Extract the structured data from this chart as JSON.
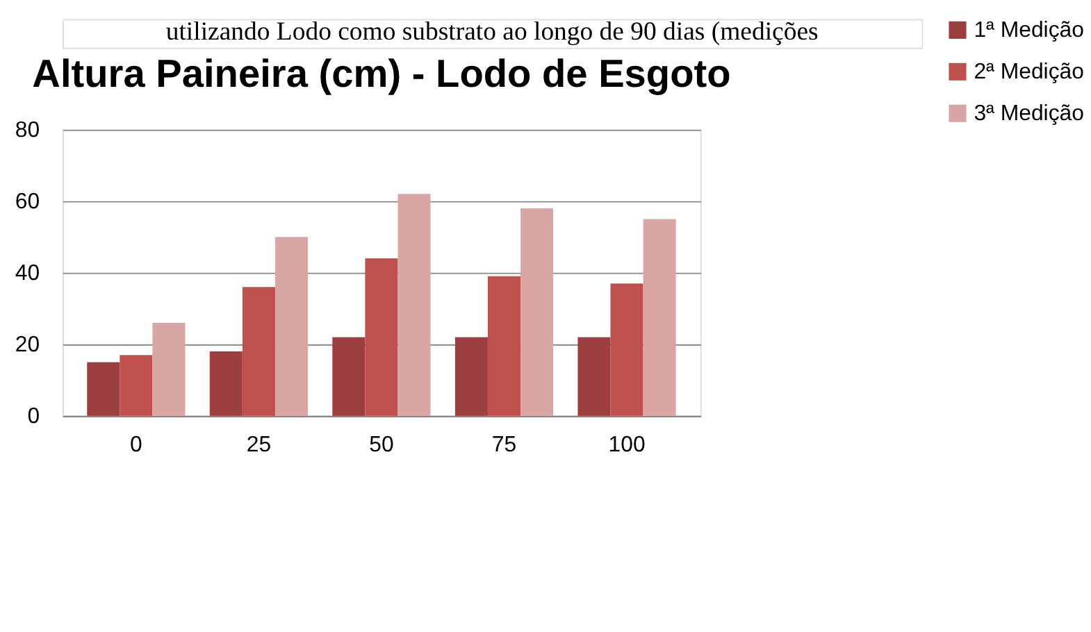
{
  "chart_data": {
    "type": "bar",
    "title": "Altura Paineira (cm) - Lodo de Esgoto",
    "annotations": [
      "utilizando Lodo como substrato ao longo de 90 dias (medições"
    ],
    "categories": [
      "0",
      "25",
      "50",
      "75",
      "100"
    ],
    "series": [
      {
        "name": "1ª Medição",
        "color": "#9c3f3e",
        "values": [
          15,
          18,
          22,
          22,
          22
        ]
      },
      {
        "name": "2ª Medição",
        "color": "#c0504d",
        "values": [
          17,
          36,
          44,
          39,
          37
        ]
      },
      {
        "name": "3ª Medição",
        "color": "#d9a6a5",
        "values": [
          26,
          50,
          62,
          58,
          55
        ]
      }
    ],
    "ylim": [
      0,
      80
    ],
    "yticks": [
      0,
      20,
      40,
      60,
      80
    ],
    "grid": "y",
    "legend": "right"
  }
}
